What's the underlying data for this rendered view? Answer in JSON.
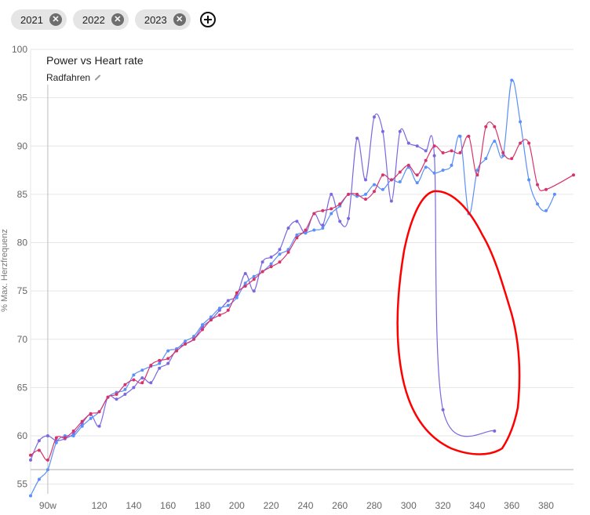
{
  "filters": {
    "chips": [
      {
        "label": "2021"
      },
      {
        "label": "2022"
      },
      {
        "label": "2023"
      }
    ]
  },
  "chart": {
    "title": "Power vs Heart rate",
    "subtitle": "Radfahren",
    "ylabel": "% Max. Herzfrequenz",
    "first_xtick_label": "90w"
  },
  "colors": {
    "2021": "#7b68e0",
    "2022": "#5b8ff9",
    "2023": "#d6336c",
    "annotation": "#ff0000"
  },
  "chart_data": {
    "type": "line",
    "title": "Power vs Heart rate",
    "subtitle": "Radfahren",
    "ylabel": "% Max. Herzfrequenz",
    "xlim": [
      80,
      396
    ],
    "ylim": [
      54,
      100
    ],
    "yticks": [
      55,
      60,
      65,
      70,
      75,
      80,
      85,
      90,
      95,
      100
    ],
    "xticks": [
      90,
      120,
      140,
      160,
      180,
      200,
      220,
      240,
      260,
      280,
      300,
      320,
      340,
      360,
      380
    ],
    "xtick_labels": [
      "90w",
      "120",
      "140",
      "160",
      "180",
      "200",
      "220",
      "240",
      "260",
      "280",
      "300",
      "320",
      "340",
      "360",
      "380"
    ],
    "reference_line_y": 56.5,
    "series": [
      {
        "name": "2021",
        "x": [
          80,
          85,
          90,
          95,
          100,
          105,
          110,
          115,
          120,
          125,
          130,
          135,
          140,
          145,
          150,
          155,
          160,
          165,
          170,
          175,
          180,
          185,
          190,
          195,
          200,
          205,
          210,
          215,
          220,
          225,
          230,
          235,
          240,
          245,
          250,
          255,
          260,
          265,
          270,
          275,
          280,
          285,
          290,
          295,
          300,
          305,
          310,
          315,
          320,
          350
        ],
        "y": [
          57.5,
          59.5,
          60.0,
          59.5,
          59.7,
          60.2,
          61.3,
          62.2,
          61.0,
          64.0,
          63.8,
          64.3,
          65.0,
          66.0,
          65.5,
          67.0,
          67.5,
          69.0,
          69.5,
          70.0,
          71.3,
          72.0,
          73.0,
          74.0,
          74.5,
          76.8,
          75.0,
          78.0,
          78.5,
          79.3,
          81.5,
          82.2,
          81.0,
          83.0,
          81.8,
          85.0,
          82.2,
          82.5,
          90.8,
          86.5,
          93.0,
          91.5,
          84.3,
          91.5,
          90.3,
          90.0,
          89.5,
          89.0,
          62.7,
          60.5
        ]
      },
      {
        "name": "2022",
        "x": [
          80,
          85,
          90,
          95,
          100,
          105,
          110,
          115,
          120,
          125,
          130,
          135,
          140,
          145,
          150,
          155,
          160,
          165,
          170,
          175,
          180,
          185,
          190,
          195,
          200,
          205,
          210,
          215,
          220,
          225,
          230,
          235,
          240,
          245,
          250,
          255,
          260,
          265,
          270,
          275,
          280,
          285,
          290,
          295,
          300,
          305,
          310,
          315,
          320,
          325,
          330,
          335,
          340,
          345,
          350,
          355,
          360,
          365,
          370,
          375,
          380,
          385
        ],
        "y": [
          53.8,
          55.5,
          56.5,
          59.3,
          60.0,
          60.0,
          61.0,
          61.8,
          62.5,
          64.0,
          64.5,
          64.8,
          66.3,
          66.8,
          67.2,
          67.5,
          68.8,
          69.0,
          69.8,
          70.3,
          71.5,
          72.3,
          73.2,
          73.5,
          74.3,
          75.8,
          76.5,
          77.0,
          77.8,
          78.8,
          79.3,
          80.8,
          81.0,
          81.3,
          81.5,
          83.0,
          83.8,
          85.0,
          84.8,
          85.0,
          86.0,
          85.5,
          86.5,
          86.3,
          87.8,
          86.2,
          87.8,
          87.2,
          87.5,
          88.0,
          91.0,
          83.0,
          87.5,
          88.7,
          90.5,
          89.0,
          96.8,
          92.5,
          86.5,
          84.0,
          83.3,
          85.0
        ]
      },
      {
        "name": "2023",
        "x": [
          80,
          85,
          90,
          95,
          100,
          105,
          110,
          115,
          120,
          125,
          130,
          135,
          140,
          145,
          150,
          155,
          160,
          165,
          170,
          175,
          180,
          185,
          190,
          195,
          200,
          205,
          210,
          215,
          220,
          225,
          230,
          235,
          240,
          245,
          250,
          255,
          260,
          265,
          270,
          275,
          280,
          285,
          290,
          295,
          300,
          305,
          310,
          315,
          320,
          325,
          330,
          335,
          340,
          345,
          350,
          355,
          360,
          365,
          370,
          375,
          380,
          396
        ],
        "y": [
          58.0,
          58.5,
          57.5,
          59.8,
          59.8,
          60.5,
          61.5,
          62.3,
          62.5,
          64.0,
          64.3,
          65.3,
          65.8,
          65.5,
          67.3,
          67.8,
          68.0,
          68.8,
          69.5,
          70.0,
          71.0,
          72.0,
          72.5,
          73.0,
          74.8,
          75.5,
          76.2,
          77.0,
          77.5,
          78.0,
          79.0,
          80.5,
          81.3,
          83.0,
          83.3,
          83.5,
          84.0,
          85.0,
          85.0,
          84.5,
          85.3,
          87.0,
          86.5,
          87.3,
          88.0,
          87.0,
          88.5,
          90.0,
          89.3,
          89.5,
          89.3,
          91.0,
          87.0,
          92.0,
          92.0,
          89.3,
          88.7,
          90.3,
          90.3,
          86.0,
          85.5,
          87.0
        ]
      }
    ]
  }
}
